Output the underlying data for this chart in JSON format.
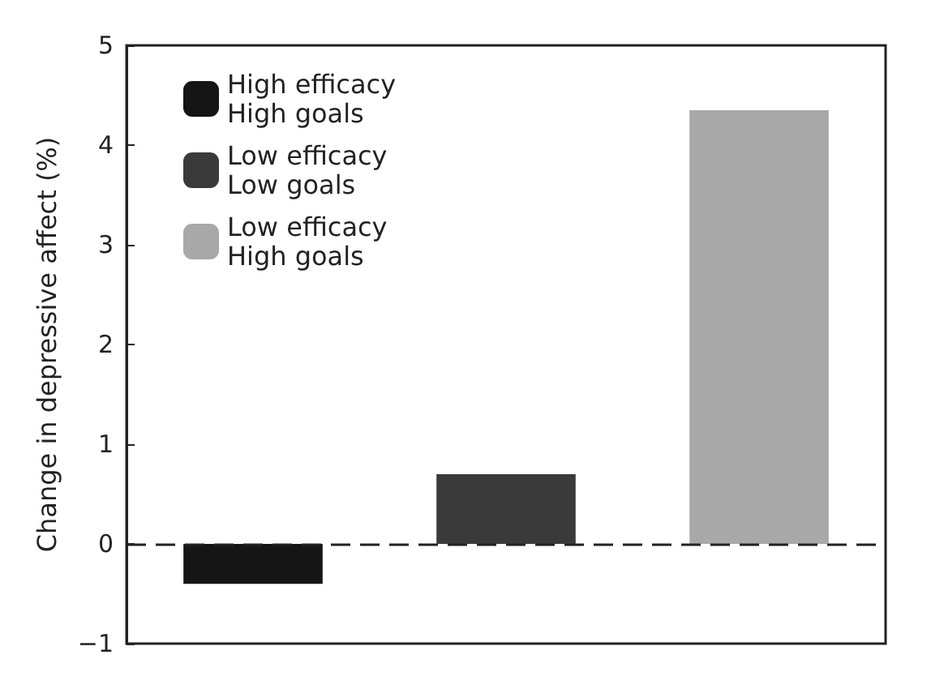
{
  "chart_data": {
    "type": "bar",
    "ylabel": "Change in depressive affect (%)",
    "categories": [
      null,
      null,
      null
    ],
    "series": [
      {
        "name": "High efficacy\nHigh goals",
        "color": "#151515",
        "values": [
          -0.4,
          null,
          null
        ]
      },
      {
        "name": "Low efficacy\nLow goals",
        "color": "#3a3a3a",
        "values": [
          null,
          0.7,
          null
        ]
      },
      {
        "name": "Low efficacy\nHigh goals",
        "color": "#a8a8a8",
        "values": [
          null,
          null,
          4.35
        ]
      }
    ],
    "ylim": [
      -1,
      5
    ],
    "yticks": [
      -1,
      0,
      1,
      2,
      3,
      4,
      5
    ],
    "ref_lines": [
      {
        "axis": "y",
        "value": 0,
        "line_style": "dashed",
        "color": "#222222"
      }
    ],
    "legend": "top left",
    "grid": false
  }
}
